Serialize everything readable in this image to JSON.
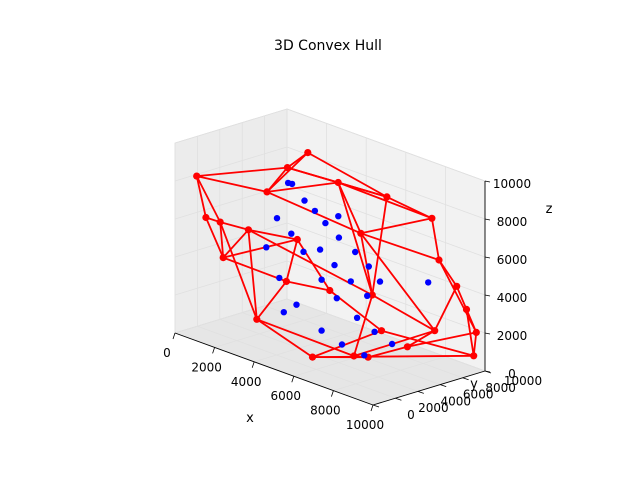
{
  "chart_data": {
    "type": "scatter",
    "title": "3D Convex Hull",
    "xlabel": "x",
    "ylabel": "y",
    "zlabel": "z",
    "xlim": [
      0,
      10000
    ],
    "ylim": [
      0,
      10000
    ],
    "zlim": [
      0,
      10000
    ],
    "x_ticks": [
      "0",
      "2000",
      "4000",
      "6000",
      "8000",
      "10000"
    ],
    "y_ticks": [
      "0",
      "2000",
      "4000",
      "6000",
      "8000",
      "10000"
    ],
    "z_ticks": [
      "0",
      "2000",
      "4000",
      "6000",
      "8000",
      "10000"
    ],
    "grid": true,
    "colors": {
      "points": "#0000ff",
      "hull": "#ff0000",
      "pane": "#f2f2f2",
      "grid": "#e0e0e0"
    },
    "points_3d": [
      [
        3200,
        4800,
        8200
      ],
      [
        3600,
        5200,
        7400
      ],
      [
        3900,
        5600,
        6900
      ],
      [
        4200,
        6000,
        6300
      ],
      [
        4600,
        6500,
        5600
      ],
      [
        5200,
        6900,
        5000
      ],
      [
        5600,
        7400,
        4300
      ],
      [
        6000,
        7700,
        3600
      ],
      [
        4500,
        5000,
        5200
      ],
      [
        5000,
        5400,
        4500
      ],
      [
        5600,
        5800,
        3800
      ],
      [
        6200,
        6200,
        3200
      ],
      [
        3000,
        3800,
        6500
      ],
      [
        3500,
        4200,
        5800
      ],
      [
        4000,
        4400,
        5000
      ],
      [
        4800,
        4600,
        3800
      ],
      [
        5400,
        4900,
        3000
      ],
      [
        6200,
        5300,
        2200
      ],
      [
        6800,
        5800,
        1600
      ],
      [
        7400,
        6300,
        1100
      ],
      [
        2800,
        3200,
        5000
      ],
      [
        3400,
        3300,
        3600
      ],
      [
        4100,
        3600,
        2400
      ],
      [
        5200,
        3900,
        1400
      ],
      [
        6000,
        4300,
        900
      ],
      [
        6900,
        4700,
        600
      ],
      [
        8600,
        7400,
        4600
      ],
      [
        2600,
        5500,
        7900
      ],
      [
        3800,
        3000,
        2000
      ],
      [
        4400,
        6800,
        6600
      ]
    ],
    "hull_vertices": [
      [
        700,
        700,
        8400
      ],
      [
        3800,
        1500,
        8600
      ],
      [
        5300,
        5200,
        9000
      ],
      [
        9300,
        6500,
        8400
      ],
      [
        600,
        1700,
        6000
      ],
      [
        700,
        2800,
        5600
      ],
      [
        2000,
        6500,
        8300
      ],
      [
        7800,
        2800,
        7700
      ],
      [
        9600,
        6600,
        6300
      ],
      [
        9700,
        8000,
        4700
      ],
      [
        9800,
        8700,
        3400
      ],
      [
        9900,
        9400,
        2100
      ],
      [
        0,
        4300,
        3200
      ],
      [
        1500,
        3900,
        5300
      ],
      [
        5500,
        9200,
        7600
      ],
      [
        7700,
        4000,
        4200
      ],
      [
        9100,
        7100,
        2300
      ],
      [
        8400,
        5900,
        1400
      ],
      [
        6700,
        5400,
        300
      ],
      [
        7000,
        3600,
        800
      ],
      [
        1100,
        8000,
        1700
      ],
      [
        2500,
        9400,
        1500
      ],
      [
        5000,
        9600,
        300
      ],
      [
        9600,
        9700,
        700
      ],
      [
        3000,
        2000,
        1500
      ],
      [
        5700,
        2200,
        500
      ],
      [
        1200,
        8800,
        3800
      ],
      [
        3200,
        6200,
        9600
      ]
    ],
    "hull_edges": [
      [
        0,
        1
      ],
      [
        1,
        2
      ],
      [
        2,
        3
      ],
      [
        0,
        4
      ],
      [
        0,
        5
      ],
      [
        4,
        5
      ],
      [
        0,
        6
      ],
      [
        1,
        6
      ],
      [
        2,
        6
      ],
      [
        1,
        7
      ],
      [
        2,
        7
      ],
      [
        3,
        7
      ],
      [
        3,
        8
      ],
      [
        7,
        8
      ],
      [
        8,
        9
      ],
      [
        9,
        10
      ],
      [
        10,
        11
      ],
      [
        8,
        11
      ],
      [
        4,
        12
      ],
      [
        5,
        12
      ],
      [
        5,
        13
      ],
      [
        12,
        13
      ],
      [
        6,
        14
      ],
      [
        2,
        14
      ],
      [
        7,
        15
      ],
      [
        13,
        15
      ],
      [
        14,
        15
      ],
      [
        9,
        16
      ],
      [
        15,
        16
      ],
      [
        16,
        17
      ],
      [
        17,
        18
      ],
      [
        18,
        19
      ],
      [
        15,
        19
      ],
      [
        16,
        19
      ],
      [
        12,
        20
      ],
      [
        20,
        21
      ],
      [
        21,
        22
      ],
      [
        22,
        23
      ],
      [
        11,
        23
      ],
      [
        10,
        23
      ],
      [
        19,
        24
      ],
      [
        18,
        25
      ],
      [
        24,
        25
      ],
      [
        22,
        25
      ],
      [
        24,
        20
      ],
      [
        21,
        26
      ],
      [
        20,
        26
      ],
      [
        12,
        26
      ],
      [
        14,
        27
      ],
      [
        1,
        27
      ],
      [
        6,
        27
      ],
      [
        13,
        24
      ],
      [
        11,
        17
      ],
      [
        3,
        14
      ],
      [
        2,
        15
      ],
      [
        7,
        16
      ],
      [
        5,
        24
      ],
      [
        25,
        23
      ],
      [
        26,
        13
      ]
    ]
  }
}
